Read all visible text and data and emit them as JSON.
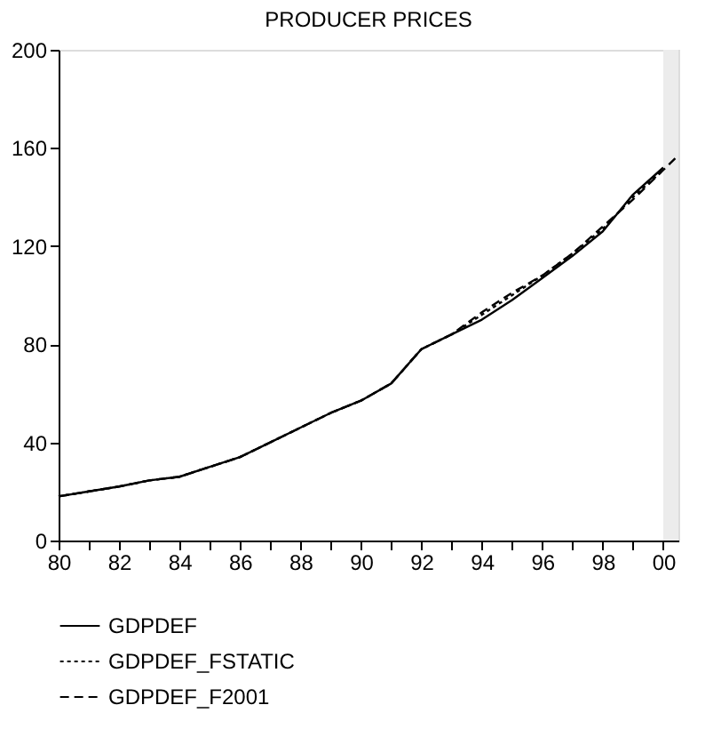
{
  "chart_data": {
    "type": "line",
    "title": "PRODUCER PRICES",
    "x": [
      1980,
      1981,
      1982,
      1983,
      1984,
      1985,
      1986,
      1987,
      1988,
      1989,
      1990,
      1991,
      1992,
      1993,
      1994,
      1995,
      1996,
      1997,
      1998,
      1999,
      2000
    ],
    "series": [
      {
        "name": "GDPDEF",
        "color": "#000000",
        "line_style": "solid",
        "values": [
          18,
          20,
          22,
          24.5,
          26,
          30,
          34,
          40,
          46,
          52,
          57,
          64,
          78,
          84,
          90,
          98,
          107,
          116,
          126,
          141,
          152
        ]
      },
      {
        "name": "GDPDEF_FSTATIC",
        "color": "#000000",
        "line_style": "dotted",
        "values": [
          18,
          20,
          22,
          24.5,
          26,
          30,
          34,
          40,
          46,
          52,
          57,
          64,
          78,
          84,
          92,
          100,
          108,
          117,
          127,
          140,
          151
        ]
      },
      {
        "name": "GDPDEF_F2001",
        "color": "#000000",
        "line_style": "dashed",
        "x": [
          1980,
          1981,
          1982,
          1983,
          1984,
          1985,
          1986,
          1987,
          1988,
          1989,
          1990,
          1991,
          1992,
          1993,
          1994,
          1995,
          1996,
          1997,
          1998,
          1999,
          2000,
          2000.5
        ],
        "values": [
          18,
          20,
          22,
          24.5,
          26,
          30,
          34,
          40,
          46,
          52,
          57,
          64,
          78,
          84,
          93,
          101,
          108,
          117,
          128,
          139,
          151,
          157
        ]
      }
    ],
    "xlim": [
      1980,
      2000.5
    ],
    "xticks": [
      {
        "value": 1980,
        "label": "80"
      },
      {
        "value": 1981,
        "label": null
      },
      {
        "value": 1982,
        "label": "82"
      },
      {
        "value": 1983,
        "label": null
      },
      {
        "value": 1984,
        "label": "84"
      },
      {
        "value": 1985,
        "label": null
      },
      {
        "value": 1986,
        "label": "86"
      },
      {
        "value": 1987,
        "label": null
      },
      {
        "value": 1988,
        "label": "88"
      },
      {
        "value": 1989,
        "label": null
      },
      {
        "value": 1990,
        "label": "90"
      },
      {
        "value": 1991,
        "label": null
      },
      {
        "value": 1992,
        "label": "92"
      },
      {
        "value": 1993,
        "label": null
      },
      {
        "value": 1994,
        "label": "94"
      },
      {
        "value": 1995,
        "label": null
      },
      {
        "value": 1996,
        "label": "96"
      },
      {
        "value": 1997,
        "label": null
      },
      {
        "value": 1998,
        "label": "98"
      },
      {
        "value": 1999,
        "label": null
      },
      {
        "value": 2000,
        "label": "00"
      }
    ],
    "ylim": [
      0,
      200
    ],
    "yticks": [
      0,
      40,
      80,
      120,
      160,
      200
    ],
    "bands": [
      {
        "axis": "x",
        "from": 2000,
        "to": 2000.5,
        "color": "#ececec"
      }
    ],
    "grid": false,
    "legend": "bottom",
    "marker": "none"
  }
}
